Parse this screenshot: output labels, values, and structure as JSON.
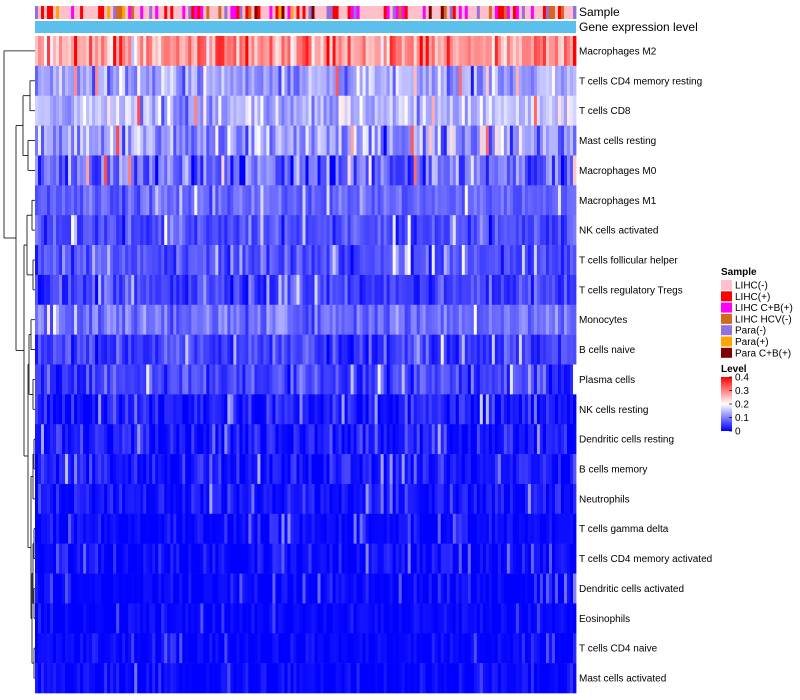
{
  "chart_data": {
    "type": "heatmap",
    "title": "",
    "annotation_tracks": [
      "Sample",
      "Gene expression level"
    ],
    "rows": [
      {
        "label": "Macrophages M2",
        "mean": 0.28,
        "sd": 0.07
      },
      {
        "label": "T cells CD4 memory resting",
        "mean": 0.13,
        "sd": 0.06
      },
      {
        "label": "T cells CD8",
        "mean": 0.15,
        "sd": 0.06
      },
      {
        "label": "Mast cells resting",
        "mean": 0.12,
        "sd": 0.07
      },
      {
        "label": "Macrophages M0",
        "mean": 0.08,
        "sd": 0.08
      },
      {
        "label": "Macrophages M1",
        "mean": 0.08,
        "sd": 0.03
      },
      {
        "label": "NK cells activated",
        "mean": 0.06,
        "sd": 0.04
      },
      {
        "label": "T cells follicular helper",
        "mean": 0.06,
        "sd": 0.04
      },
      {
        "label": "T cells regulatory  Tregs",
        "mean": 0.05,
        "sd": 0.04
      },
      {
        "label": "Monocytes",
        "mean": 0.09,
        "sd": 0.04
      },
      {
        "label": "B cells naive",
        "mean": 0.05,
        "sd": 0.04
      },
      {
        "label": "Plasma cells",
        "mean": 0.05,
        "sd": 0.05
      },
      {
        "label": "NK cells resting",
        "mean": 0.02,
        "sd": 0.04
      },
      {
        "label": "Dendritic cells resting",
        "mean": 0.02,
        "sd": 0.04
      },
      {
        "label": "B cells memory",
        "mean": 0.02,
        "sd": 0.04
      },
      {
        "label": "Neutrophils",
        "mean": 0.015,
        "sd": 0.03
      },
      {
        "label": "T cells gamma delta",
        "mean": 0.008,
        "sd": 0.03
      },
      {
        "label": "T cells CD4 memory activated",
        "mean": 0.008,
        "sd": 0.03
      },
      {
        "label": "Dendritic cells activated",
        "mean": 0.006,
        "sd": 0.025
      },
      {
        "label": "Eosinophils",
        "mean": 0.004,
        "sd": 0.02
      },
      {
        "label": "T cells CD4 naive",
        "mean": 0.004,
        "sd": 0.02
      },
      {
        "label": "Mast cells activated",
        "mean": 0.005,
        "sd": 0.025
      }
    ],
    "n_samples": 180,
    "sample_track": {
      "categories": [
        "LIHC(-)",
        "LIHC(+)",
        "LIHC C+B(+)",
        "LIHC HCV(-)",
        "Para(-)",
        "Para(+)",
        "Para C+B(+)"
      ],
      "weights": [
        0.55,
        0.12,
        0.16,
        0.05,
        0.07,
        0.03,
        0.02
      ]
    },
    "gene_expression_color": "#5bc0eb",
    "legend": {
      "sample_title": "Sample",
      "sample_entries": [
        {
          "label": "LIHC(-)",
          "color": "#ffc0cb"
        },
        {
          "label": "LIHC(+)",
          "color": "#ff0000"
        },
        {
          "label": "LIHC C+B(+)",
          "color": "#ff00ff"
        },
        {
          "label": "LIHC HCV(-)",
          "color": "#d2691e"
        },
        {
          "label": "Para(-)",
          "color": "#9370db"
        },
        {
          "label": "Para(+)",
          "color": "#ffa500"
        },
        {
          "label": "Para C+B(+)",
          "color": "#800000"
        }
      ],
      "level_title": "Level",
      "level_ticks": [
        {
          "value": 0.4,
          "label": "0.4"
        },
        {
          "value": 0.3,
          "label": "0.3"
        },
        {
          "value": 0.2,
          "label": "0.2"
        },
        {
          "value": 0.1,
          "label": "0.1"
        },
        {
          "value": 0,
          "label": "0"
        }
      ],
      "level_range": [
        0,
        0.4
      ]
    },
    "colorscale": [
      "#0000ff",
      "#ffffff",
      "#ff0000"
    ]
  }
}
